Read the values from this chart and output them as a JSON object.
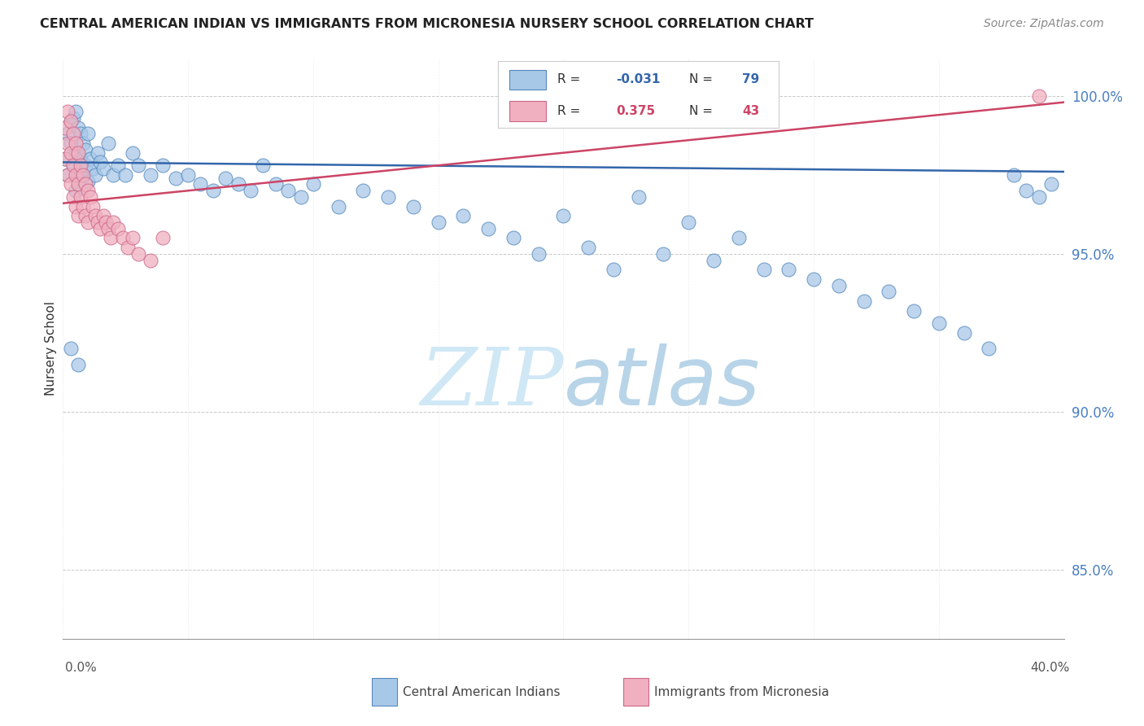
{
  "title": "CENTRAL AMERICAN INDIAN VS IMMIGRANTS FROM MICRONESIA NURSERY SCHOOL CORRELATION CHART",
  "source": "Source: ZipAtlas.com",
  "ylabel": "Nursery School",
  "ytick_vals": [
    0.85,
    0.9,
    0.95,
    1.0
  ],
  "ytick_labels": [
    "85.0%",
    "90.0%",
    "95.0%",
    "100.0%"
  ],
  "xlim": [
    0.0,
    0.4
  ],
  "ylim": [
    0.828,
    1.012
  ],
  "legend_R_blue": "-0.031",
  "legend_N_blue": "79",
  "legend_R_pink": "0.375",
  "legend_N_pink": "43",
  "blue_fill": "#a8c8e8",
  "blue_edge": "#5588bb",
  "pink_fill": "#f0b0c0",
  "pink_edge": "#cc6688",
  "blue_line": "#3366aa",
  "pink_line": "#cc4466",
  "watermark_color": "#d0e8f5",
  "blue_x": [
    0.001,
    0.002,
    0.002,
    0.003,
    0.003,
    0.004,
    0.004,
    0.005,
    0.005,
    0.005,
    0.006,
    0.006,
    0.007,
    0.007,
    0.008,
    0.008,
    0.009,
    0.009,
    0.01,
    0.01,
    0.011,
    0.012,
    0.013,
    0.014,
    0.015,
    0.016,
    0.018,
    0.02,
    0.022,
    0.025,
    0.028,
    0.03,
    0.035,
    0.04,
    0.045,
    0.05,
    0.055,
    0.06,
    0.065,
    0.07,
    0.075,
    0.08,
    0.085,
    0.09,
    0.095,
    0.1,
    0.11,
    0.12,
    0.13,
    0.14,
    0.15,
    0.16,
    0.17,
    0.18,
    0.19,
    0.2,
    0.21,
    0.22,
    0.23,
    0.24,
    0.25,
    0.26,
    0.27,
    0.28,
    0.29,
    0.3,
    0.31,
    0.32,
    0.33,
    0.34,
    0.35,
    0.36,
    0.37,
    0.38,
    0.385,
    0.39,
    0.395,
    0.003,
    0.006
  ],
  "blue_y": [
    0.98,
    0.988,
    0.975,
    0.992,
    0.985,
    0.978,
    0.993,
    0.97,
    0.982,
    0.995,
    0.975,
    0.99,
    0.988,
    0.98,
    0.975,
    0.985,
    0.983,
    0.978,
    0.973,
    0.988,
    0.98,
    0.977,
    0.975,
    0.982,
    0.979,
    0.977,
    0.985,
    0.975,
    0.978,
    0.975,
    0.982,
    0.978,
    0.975,
    0.978,
    0.974,
    0.975,
    0.972,
    0.97,
    0.974,
    0.972,
    0.97,
    0.978,
    0.972,
    0.97,
    0.968,
    0.972,
    0.965,
    0.97,
    0.968,
    0.965,
    0.96,
    0.962,
    0.958,
    0.955,
    0.95,
    0.962,
    0.952,
    0.945,
    0.968,
    0.95,
    0.96,
    0.948,
    0.955,
    0.945,
    0.945,
    0.942,
    0.94,
    0.935,
    0.938,
    0.932,
    0.928,
    0.925,
    0.92,
    0.975,
    0.97,
    0.968,
    0.972,
    0.92,
    0.915
  ],
  "pink_x": [
    0.001,
    0.001,
    0.002,
    0.002,
    0.002,
    0.003,
    0.003,
    0.003,
    0.004,
    0.004,
    0.004,
    0.005,
    0.005,
    0.005,
    0.006,
    0.006,
    0.006,
    0.007,
    0.007,
    0.008,
    0.008,
    0.009,
    0.009,
    0.01,
    0.01,
    0.011,
    0.012,
    0.013,
    0.014,
    0.015,
    0.016,
    0.017,
    0.018,
    0.019,
    0.02,
    0.022,
    0.024,
    0.026,
    0.028,
    0.03,
    0.035,
    0.04,
    0.39
  ],
  "pink_y": [
    0.99,
    0.98,
    0.995,
    0.985,
    0.975,
    0.992,
    0.982,
    0.972,
    0.988,
    0.978,
    0.968,
    0.985,
    0.975,
    0.965,
    0.982,
    0.972,
    0.962,
    0.978,
    0.968,
    0.975,
    0.965,
    0.972,
    0.962,
    0.97,
    0.96,
    0.968,
    0.965,
    0.962,
    0.96,
    0.958,
    0.962,
    0.96,
    0.958,
    0.955,
    0.96,
    0.958,
    0.955,
    0.952,
    0.955,
    0.95,
    0.948,
    0.955,
    1.0
  ],
  "blue_trend_x0": 0.0,
  "blue_trend_x1": 0.4,
  "blue_trend_y0": 0.979,
  "blue_trend_y1": 0.976,
  "pink_trend_x0": 0.0,
  "pink_trend_x1": 0.4,
  "pink_trend_y0": 0.966,
  "pink_trend_y1": 0.998
}
